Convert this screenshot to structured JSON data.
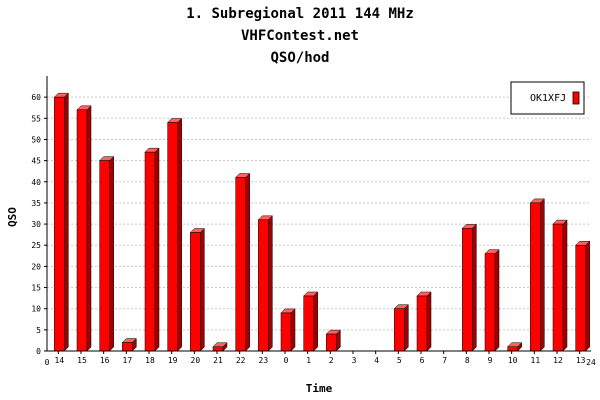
{
  "titles": [
    "1. Subregional 2011 144 MHz",
    "VHFContest.net",
    "QSO/hod"
  ],
  "colors": {
    "bar_front": "#ff0000",
    "bar_side": "#a00000",
    "bar_top": "#ff6060",
    "grid": "#c8c8c8",
    "axis": "#000000"
  },
  "chart_data": {
    "type": "bar",
    "title": "1. Subregional 2011 144 MHz",
    "subtitle": [
      "VHFContest.net",
      "QSO/hod"
    ],
    "xlabel": "Time",
    "ylabel": "QSO",
    "x_edge_labels": [
      "0",
      "24"
    ],
    "categories": [
      "14",
      "15",
      "16",
      "17",
      "18",
      "19",
      "20",
      "21",
      "22",
      "23",
      "0",
      "1",
      "2",
      "3",
      "4",
      "5",
      "6",
      "7",
      "8",
      "9",
      "10",
      "11",
      "12",
      "13"
    ],
    "series": [
      {
        "name": "OK1XFJ",
        "values": [
          60,
          57,
          45,
          2,
          47,
          54,
          28,
          1,
          41,
          31,
          9,
          13,
          4,
          0,
          0,
          10,
          13,
          0,
          29,
          23,
          1,
          35,
          30,
          25
        ]
      }
    ],
    "yticks": [
      0,
      5,
      10,
      15,
      20,
      25,
      30,
      35,
      40,
      45,
      50,
      55,
      60
    ],
    "ylim": [
      0,
      65
    ],
    "grid": true,
    "legend_position": "top-right"
  }
}
